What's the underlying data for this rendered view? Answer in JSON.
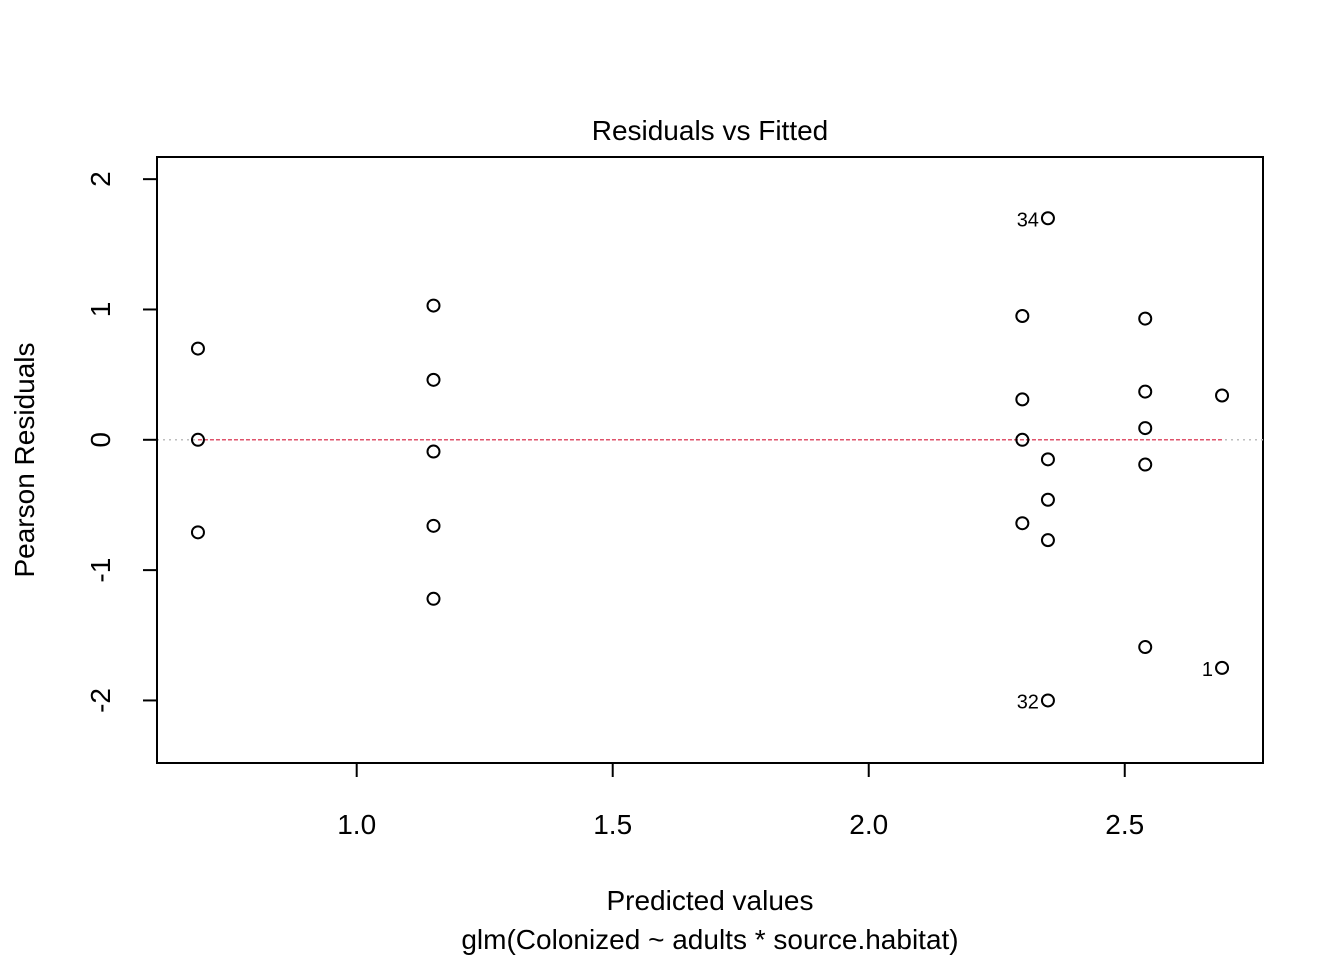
{
  "chart_data": {
    "type": "scatter",
    "title": "Residuals vs Fitted",
    "xlabel": "Predicted values",
    "xsublabel": "glm(Colonized ~ adults * source.habitat)",
    "ylabel": "Pearson Residuals",
    "xlim": [
      0.61,
      2.77
    ],
    "ylim": [
      -2.48,
      2.17
    ],
    "xticks": [
      1.0,
      1.5,
      2.0,
      2.5
    ],
    "xtick_labels": [
      "1.0",
      "1.5",
      "2.0",
      "2.5"
    ],
    "yticks": [
      -2,
      -1,
      0,
      1,
      2
    ],
    "ytick_labels": [
      "-2",
      "-1",
      "0",
      "1",
      "2"
    ],
    "grid": false,
    "reference_line": {
      "y": 0,
      "style": "dotted",
      "color": "#BEBEBE"
    },
    "smooth_line": {
      "color": "#DF536B",
      "style": "dashed",
      "x": [
        0.69,
        2.69
      ],
      "y": [
        0,
        0
      ]
    },
    "point_color": "#000000",
    "points": [
      {
        "x": 0.69,
        "y": 0.7
      },
      {
        "x": 0.69,
        "y": 0.0
      },
      {
        "x": 0.69,
        "y": -0.71
      },
      {
        "x": 1.15,
        "y": 1.03
      },
      {
        "x": 1.15,
        "y": 0.46
      },
      {
        "x": 1.15,
        "y": -0.09
      },
      {
        "x": 1.15,
        "y": -0.66
      },
      {
        "x": 1.15,
        "y": -1.22
      },
      {
        "x": 2.35,
        "y": 1.7,
        "label": "34"
      },
      {
        "x": 2.3,
        "y": 0.95
      },
      {
        "x": 2.3,
        "y": 0.31
      },
      {
        "x": 2.3,
        "y": 0.0
      },
      {
        "x": 2.35,
        "y": -0.15
      },
      {
        "x": 2.35,
        "y": -0.46
      },
      {
        "x": 2.3,
        "y": -0.64
      },
      {
        "x": 2.35,
        "y": -0.77
      },
      {
        "x": 2.35,
        "y": -2.0,
        "label": "32"
      },
      {
        "x": 2.54,
        "y": 0.93
      },
      {
        "x": 2.54,
        "y": 0.37
      },
      {
        "x": 2.54,
        "y": 0.09
      },
      {
        "x": 2.54,
        "y": -0.19
      },
      {
        "x": 2.54,
        "y": -1.59
      },
      {
        "x": 2.69,
        "y": 0.34
      },
      {
        "x": 2.69,
        "y": -1.75,
        "label": "1"
      }
    ]
  }
}
